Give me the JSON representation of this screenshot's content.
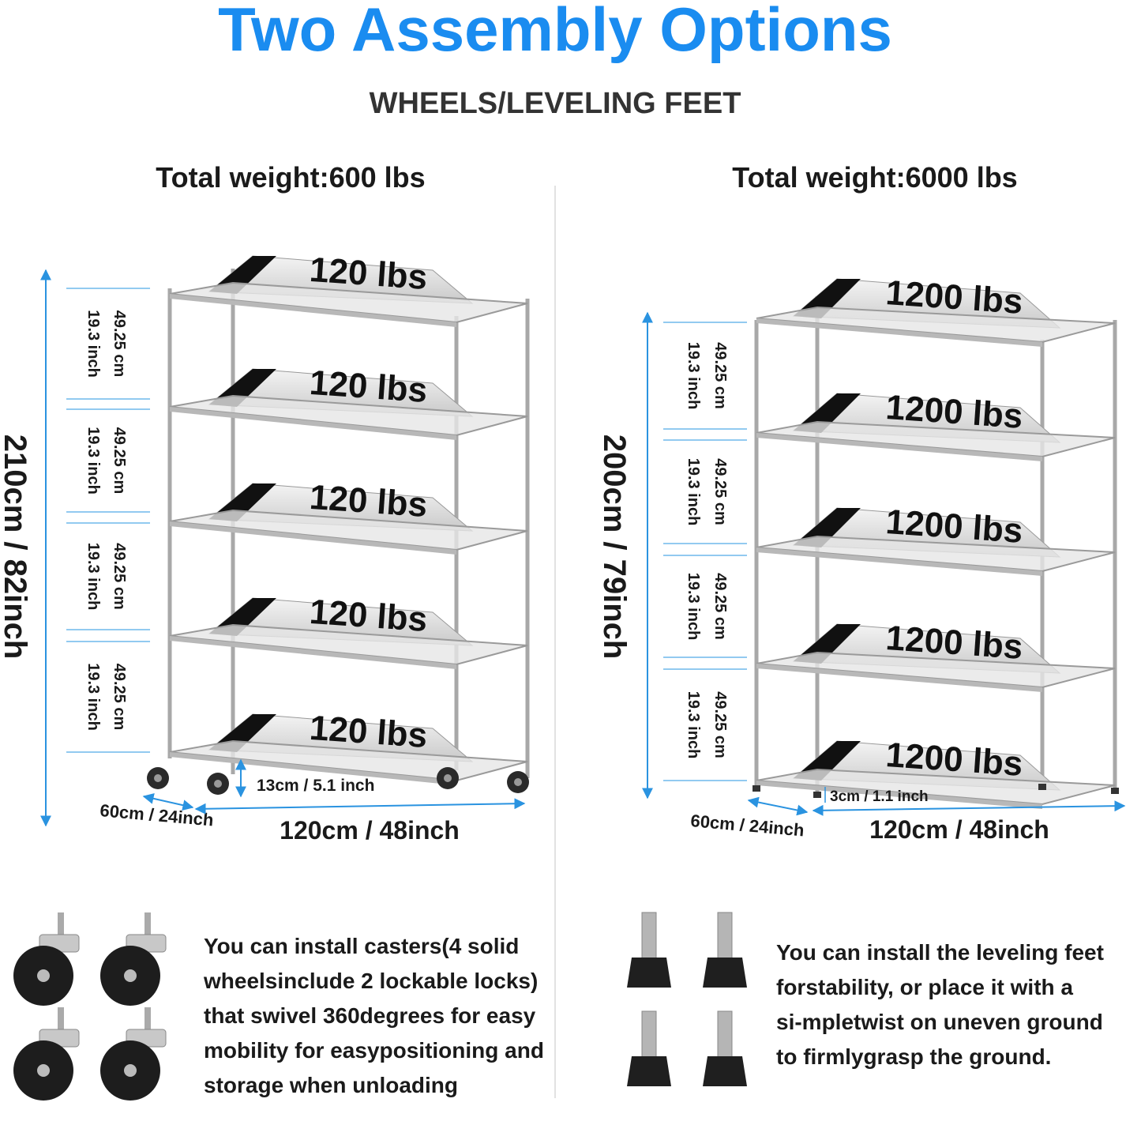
{
  "title": "Two Assembly Options",
  "subtitle": "WHEELS/LEVELING FEET",
  "colors": {
    "accent": "#1a8cf0",
    "text": "#1a1a1a",
    "dimension": "#2a93e0"
  },
  "left": {
    "heading": "Total weight:600 lbs",
    "height_label": "210cm / 82inch",
    "spacing_cm": "49.25 cm",
    "spacing_inch": "19.3 inch",
    "shelf_loads": [
      "120 lbs",
      "120 lbs",
      "120 lbs",
      "120 lbs",
      "120 lbs"
    ],
    "clearance_label": "13cm / 5.1 inch",
    "depth_label": "60cm / 24inch",
    "width_label": "120cm / 48inch",
    "accessory_icon": "caster-wheel-icon",
    "description": [
      "You can install casters(4 solid",
      "wheelsinclude 2 lockable locks)",
      "that swivel 360degrees for easy",
      "mobility for easypositioning and",
      "storage when unloading"
    ]
  },
  "right": {
    "heading": "Total weight:6000 lbs",
    "height_label": "200cm / 79inch",
    "spacing_cm": "49.25 cm",
    "spacing_inch": "19.3 inch",
    "shelf_loads": [
      "1200 lbs",
      "1200 lbs",
      "1200 lbs",
      "1200 lbs",
      "1200 lbs"
    ],
    "clearance_label": "3cm / 1.1 inch",
    "depth_label": "60cm / 24inch",
    "width_label": "120cm / 48inch",
    "accessory_icon": "leveling-foot-icon",
    "description": [
      "You can install the leveling feet",
      "forstability, or place it with a",
      "si-mpletwist on uneven ground",
      "to firmlygrasp the ground."
    ]
  }
}
